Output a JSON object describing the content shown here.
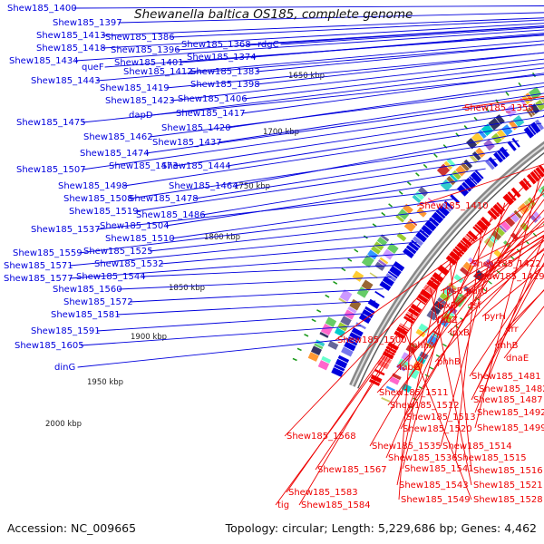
{
  "title": "Shewanella baltica OS185, complete genome",
  "accession": "Accession: NC_009665",
  "summary": "Topology: circular; Length: 5,229,686 bp; Genes: 4,462",
  "colors": {
    "forward_gene": "#0000dd",
    "reverse_gene": "#ee0000",
    "backbone": "#777777",
    "tick": "#1a9a1a"
  },
  "ticks": [
    "1650 kbp",
    "1700 kbp",
    "1750 kbp",
    "1800 kbp",
    "1850 kbp",
    "1900 kbp",
    "1950 kbp",
    "2000 kbp"
  ],
  "forward_labels": [
    "Shew185_1400",
    "Shew185_1397",
    "Shew185_1413",
    "Shew185_1386",
    "Shew185_1418",
    "Shew185_1396",
    "Shew185_1368",
    "rdgC",
    "Shew185_1374",
    "Shew185_1434",
    "Shew185_1401",
    "queF",
    "Shew185_1412",
    "Shew185_1383",
    "Shew185_1443",
    "Shew185_1398",
    "Shew185_1419",
    "Shew185_1423",
    "Shew185_1406",
    "dapD",
    "Shew185_1417",
    "Shew185_1475",
    "Shew185_1420",
    "Shew185_1462",
    "Shew185_1437",
    "Shew185_1474",
    "Shew185_1507",
    "Shew185_1473",
    "Shew185_1444",
    "Shew185_1498",
    "Shew185_1464",
    "Shew185_1508",
    "Shew185_1478",
    "Shew185_1519",
    "Shew185_1486",
    "Shew185_1504",
    "Shew185_1537",
    "Shew185_1510",
    "Shew185_1559",
    "Shew185_1525",
    "Shew185_1571",
    "Shew185_1532",
    "Shew185_1577",
    "Shew185_1544",
    "Shew185_1560",
    "Shew185_1572",
    "Shew185_1581",
    "Shew185_1591",
    "Shew185_1605",
    "dinG"
  ],
  "reverse_labels": [
    "Shew185_1355",
    "Shew185_1410",
    "Shew185_1422",
    "Shew185_1429",
    "rpsB",
    "purU",
    "lpxD",
    "tsf",
    "pyrH",
    "fabZ",
    "frr",
    "lpxB",
    "rnhB",
    "dnaE",
    "Shew185_1500",
    "phhA",
    "phhB",
    "fabG",
    "Shew185_1481",
    "Shew185_1511",
    "Shew185_1482",
    "Shew185_1487",
    "Shew185_1512",
    "Shew185_1492",
    "Shew185_1513",
    "Shew185_1520",
    "Shew185_1499",
    "Shew185_1568",
    "Shew185_1535",
    "Shew185_1514",
    "Shew185_1536",
    "Shew185_1515",
    "Shew185_1567",
    "Shew185_1541",
    "Shew185_1516",
    "Shew185_1543",
    "Shew185_1521",
    "Shew185_1583",
    "Shew185_1549",
    "Shew185_1528",
    "tig",
    "Shew185_1584"
  ]
}
